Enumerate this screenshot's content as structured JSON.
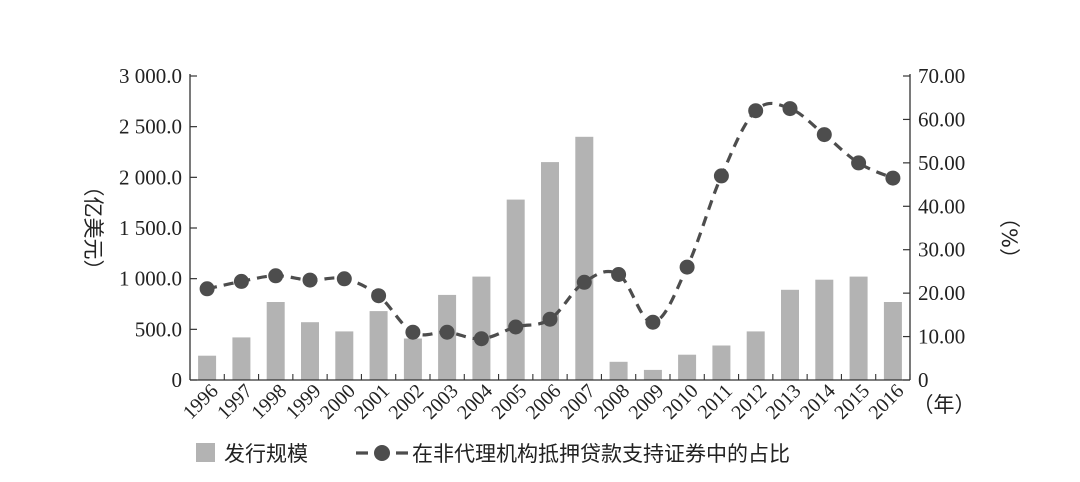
{
  "chart_data": {
    "type": "bar",
    "categories": [
      "1996",
      "1997",
      "1998",
      "1999",
      "2000",
      "2001",
      "2002",
      "2003",
      "2004",
      "2005",
      "2006",
      "2007",
      "2008",
      "2009",
      "2010",
      "2011",
      "2012",
      "2013",
      "2014",
      "2015",
      "2016"
    ],
    "series": [
      {
        "name": "发行规模",
        "type": "bar",
        "axis": "left",
        "color": "#b3b3b3",
        "values": [
          240,
          420,
          770,
          570,
          480,
          680,
          410,
          840,
          1020,
          1780,
          2150,
          2400,
          180,
          100,
          250,
          340,
          480,
          890,
          990,
          1020,
          770
        ]
      },
      {
        "name": "在非代理机构抵押贷款支持证券中的占比",
        "type": "line",
        "axis": "right",
        "color": "#4d4d4d",
        "values": [
          21.0,
          22.7,
          24.0,
          23.0,
          23.3,
          19.4,
          11.0,
          11.0,
          9.5,
          12.2,
          14.0,
          22.5,
          24.3,
          13.3,
          26.0,
          47.0,
          62.0,
          62.5,
          56.5,
          50.0,
          46.5
        ]
      }
    ],
    "y_left": {
      "label": "（亿美元）",
      "ylim": [
        0,
        3000
      ],
      "ticks": [
        "0",
        "500.0",
        "1 000.0",
        "1 500.0",
        "2 000.0",
        "2 500.0",
        "3 000.0"
      ]
    },
    "y_right": {
      "label": "（%）",
      "ylim": [
        0,
        70
      ],
      "ticks": [
        "0",
        "10.00",
        "20.00",
        "30.00",
        "40.00",
        "50.00",
        "60.00",
        "70.00"
      ]
    },
    "x_unit_label": "（年）",
    "title": "",
    "grid": false,
    "legend_position": "bottom"
  }
}
